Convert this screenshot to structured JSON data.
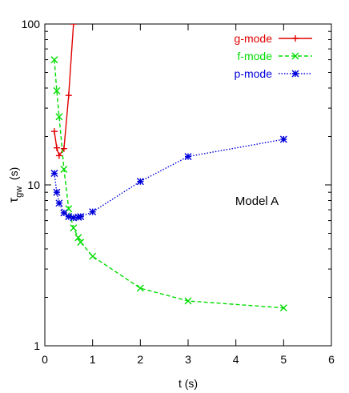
{
  "chart_data": {
    "type": "line",
    "xlabel": "t (s)",
    "ylabel": "τ",
    "ylabel_sub": "gw",
    "ylabel_unit": "(s)",
    "xlim": [
      0,
      6
    ],
    "ylim": [
      1,
      100
    ],
    "yscale": "log",
    "x_ticks": [
      0,
      1,
      2,
      3,
      4,
      5,
      6
    ],
    "x_tick_labels": [
      "0",
      "1",
      "2",
      "3",
      "4",
      "5",
      "6"
    ],
    "y_ticks": [
      1,
      10,
      100
    ],
    "y_tick_labels": [
      "1",
      "10",
      "100"
    ],
    "grid": false,
    "legend_position": "top-right",
    "annotation": "Model A",
    "series": [
      {
        "name": "g-mode",
        "color": "#e00000",
        "marker": "plus",
        "dash": "solid",
        "x": [
          0.2,
          0.25,
          0.3,
          0.4,
          0.5,
          0.6,
          0.65
        ],
        "y": [
          21.5,
          17.0,
          15.2,
          16.8,
          36.0,
          100.0,
          140.0
        ]
      },
      {
        "name": "f-mode",
        "color": "#00dd00",
        "marker": "x",
        "dash": "dashed",
        "x": [
          0.2,
          0.25,
          0.3,
          0.4,
          0.5,
          0.6,
          0.7,
          0.75,
          1.0,
          2.0,
          3.0,
          5.0
        ],
        "y": [
          60.0,
          38.5,
          26.5,
          12.5,
          7.1,
          5.4,
          4.7,
          4.4,
          3.6,
          2.28,
          1.9,
          1.72
        ]
      },
      {
        "name": "p-mode",
        "color": "#0000dd",
        "marker": "star",
        "dash": "dotted",
        "x": [
          0.2,
          0.25,
          0.3,
          0.4,
          0.5,
          0.6,
          0.7,
          0.75,
          1.0,
          2.0,
          3.0,
          5.0
        ],
        "y": [
          11.8,
          9.0,
          7.7,
          6.7,
          6.35,
          6.25,
          6.3,
          6.35,
          6.8,
          10.5,
          15.0,
          19.2
        ]
      }
    ]
  }
}
